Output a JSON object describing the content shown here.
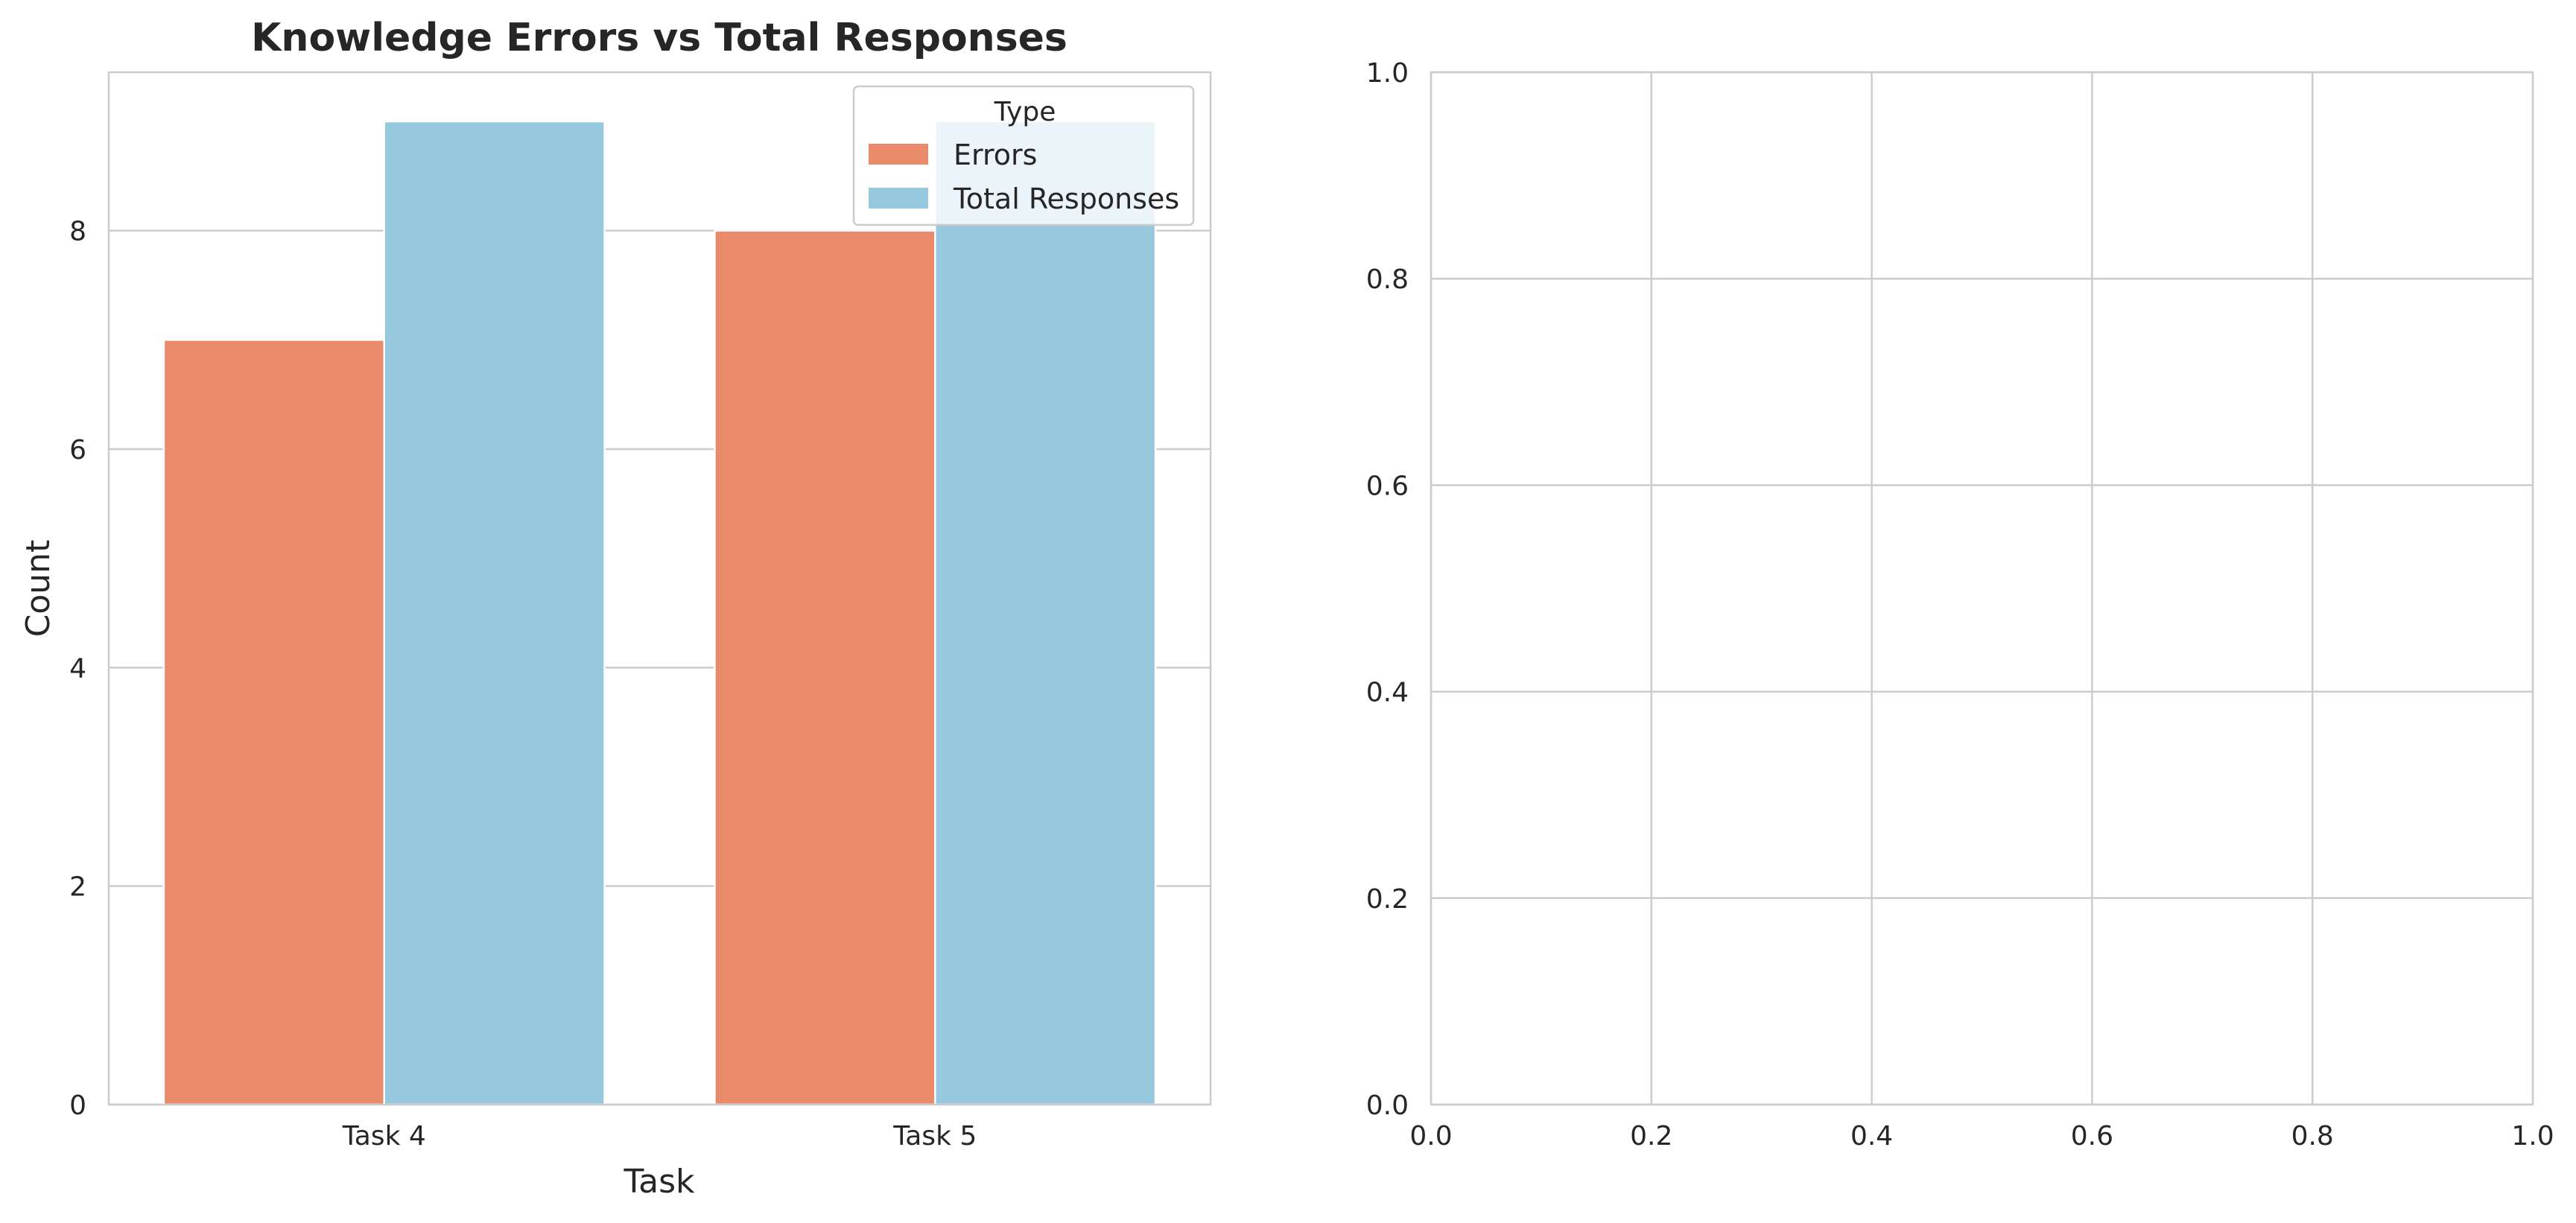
{
  "chart_data": [
    {
      "type": "bar",
      "title": "Knowledge Errors vs Total Responses",
      "xlabel": "Task",
      "ylabel": "Count",
      "categories": [
        "Task 4",
        "Task 5"
      ],
      "series": [
        {
          "name": "Errors",
          "values": [
            7,
            8
          ],
          "color": "#e98b6a"
        },
        {
          "name": "Total Responses",
          "values": [
            9,
            9
          ],
          "color": "#97c9de"
        }
      ],
      "ylim": [
        0,
        9.45
      ],
      "yticks": [
        0,
        2,
        4,
        6,
        8
      ],
      "ytick_labels": [
        "0",
        "2",
        "4",
        "6",
        "8"
      ],
      "legend": {
        "title": "Type",
        "placement": "top-right"
      },
      "grid": "horizontal"
    },
    {
      "type": "empty",
      "title": "",
      "xlabel": "",
      "ylabel": "",
      "xlim": [
        0,
        1
      ],
      "ylim": [
        0,
        1
      ],
      "xticks": [
        0,
        0.2,
        0.4,
        0.6,
        0.8,
        1.0
      ],
      "yticks": [
        0,
        0.2,
        0.4,
        0.6,
        0.8,
        1.0
      ],
      "xtick_labels": [
        "0.0",
        "0.2",
        "0.4",
        "0.6",
        "0.8",
        "1.0"
      ],
      "ytick_labels": [
        "0.0",
        "0.2",
        "0.4",
        "0.6",
        "0.8",
        "1.0"
      ],
      "grid": "both"
    }
  ]
}
